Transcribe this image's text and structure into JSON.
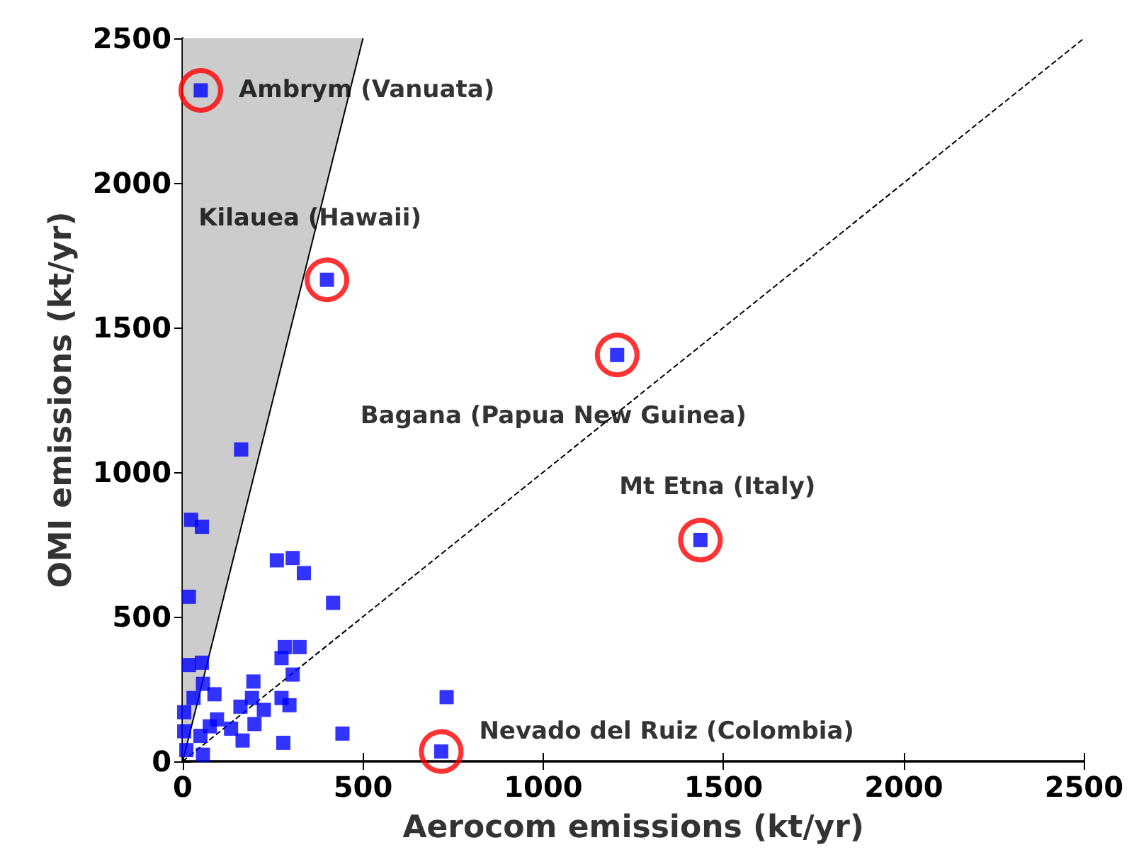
{
  "chart_data": {
    "type": "scatter",
    "xlabel": "Aerocom emissions (kt/yr)",
    "ylabel": "OMI emissions (kt/yr)",
    "xlim": [
      0,
      2500
    ],
    "ylim": [
      0,
      2500
    ],
    "xticks": [
      0,
      500,
      1000,
      1500,
      2000,
      2500
    ],
    "yticks": [
      0,
      500,
      1000,
      1500,
      2000,
      2500
    ],
    "grid": false,
    "marker": "square",
    "series": [
      {
        "type": "area",
        "color": "#cccccc",
        "marker": "none",
        "x": [
          0,
          500
        ],
        "values": [
          0,
          2500
        ]
      },
      {
        "type": "line",
        "color": "#000000",
        "marker": "none",
        "line_style": "dashed",
        "x": [
          0,
          2500
        ],
        "values": [
          0,
          2500
        ]
      },
      {
        "color": "#0000ff",
        "x": [
          50,
          400,
          1205,
          1436,
          717,
          732,
          162,
          23,
          53,
          261,
          305,
          336,
          17,
          417,
          283,
          324,
          274,
          305,
          17,
          53,
          196,
          88,
          56,
          274,
          296,
          192,
          160,
          225,
          443,
          279,
          166,
          199,
          134,
          4,
          30,
          4,
          49,
          75,
          56,
          10,
          95
        ],
        "values": [
          2320,
          1665,
          1405,
          765,
          34,
          222,
          1078,
          835,
          811,
          695,
          703,
          651,
          569,
          548,
          395,
          395,
          357,
          300,
          333,
          341,
          276,
          232,
          268,
          219,
          194,
          219,
          189,
          178,
          96,
          64,
          72,
          129,
          113,
          170,
          219,
          104,
          88,
          121,
          23,
          39,
          145
        ]
      }
    ],
    "annotations": [
      {
        "text": "Ambrym (Vanuata)",
        "x": 50,
        "y": 2320
      },
      {
        "text": "Kilauea (Hawaii)",
        "x": 400,
        "y": 1665
      },
      {
        "text": "Bagana (Papua New Guinea)",
        "x": 1205,
        "y": 1405
      },
      {
        "text": "Mt Etna (Italy)",
        "x": 1436,
        "y": 765
      },
      {
        "text": "Nevado del Ruiz (Colombia)",
        "x": 717,
        "y": 34
      }
    ]
  }
}
